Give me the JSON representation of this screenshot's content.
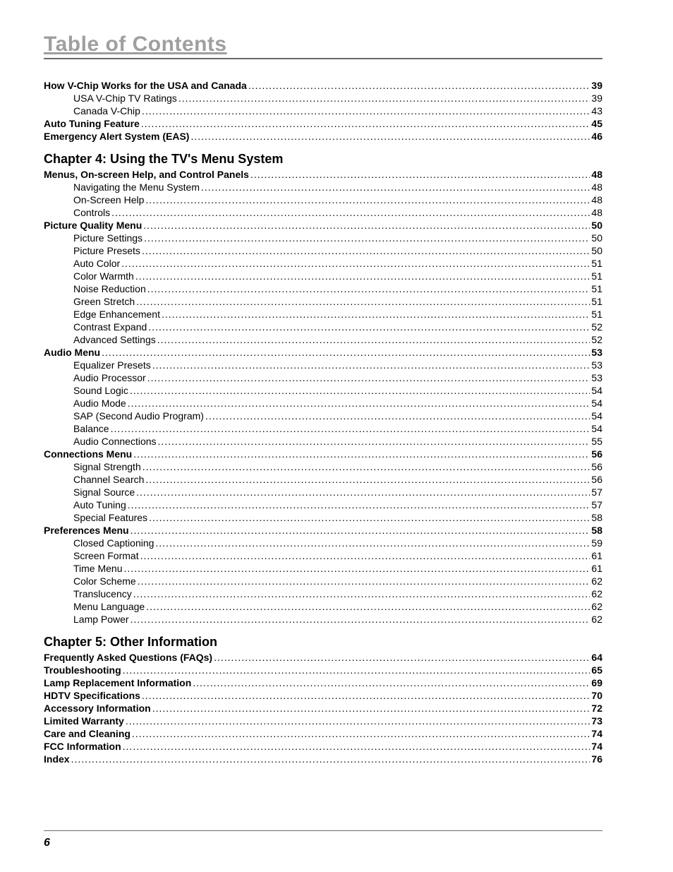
{
  "title": "Table of Contents",
  "page_number": "6",
  "colors": {
    "title_color": "#9f9f9f",
    "rule_color": "#6a6a6a",
    "text_color": "#000000",
    "background": "#ffffff"
  },
  "typography": {
    "title_fontsize_pt": 22,
    "chapter_fontsize_pt": 14,
    "body_fontsize_pt": 10.5,
    "page_number_fontsize_pt": 12
  },
  "toc_sections": [
    {
      "entries": [
        {
          "level": 0,
          "label": "How V-Chip Works for the USA and Canada",
          "page": "39"
        },
        {
          "level": 1,
          "label": "USA V-Chip TV Ratings",
          "page": "39"
        },
        {
          "level": 1,
          "label": "Canada V-Chip",
          "page": "43"
        },
        {
          "level": 0,
          "label": "Auto Tuning Feature",
          "page": "45"
        },
        {
          "level": 0,
          "label": "Emergency Alert System (EAS)",
          "page": "46"
        }
      ]
    },
    {
      "chapter_heading": "Chapter 4: Using the TV's Menu System",
      "entries": [
        {
          "level": 0,
          "label": "Menus, On-screen Help, and Control Panels",
          "page": "48"
        },
        {
          "level": 1,
          "label": "Navigating the Menu System",
          "page": "48"
        },
        {
          "level": 1,
          "label": "On-Screen Help",
          "page": "48"
        },
        {
          "level": 1,
          "label": "Controls",
          "page": "48"
        },
        {
          "level": 0,
          "label": "Picture Quality Menu",
          "page": "50"
        },
        {
          "level": 1,
          "label": "Picture Settings",
          "page": "50"
        },
        {
          "level": 1,
          "label": "Picture Presets",
          "page": "50"
        },
        {
          "level": 1,
          "label": "Auto Color",
          "page": "51"
        },
        {
          "level": 1,
          "label": "Color Warmth",
          "page": "51"
        },
        {
          "level": 1,
          "label": "Noise Reduction",
          "page": "51"
        },
        {
          "level": 1,
          "label": "Green Stretch",
          "page": "51"
        },
        {
          "level": 1,
          "label": "Edge Enhancement",
          "page": "51"
        },
        {
          "level": 1,
          "label": "Contrast Expand",
          "page": "52"
        },
        {
          "level": 1,
          "label": "Advanced Settings",
          "page": "52"
        },
        {
          "level": 0,
          "label": "Audio Menu",
          "page": "53"
        },
        {
          "level": 1,
          "label": "Equalizer Presets",
          "page": "53"
        },
        {
          "level": 1,
          "label": "Audio Processor",
          "page": "53"
        },
        {
          "level": 1,
          "label": "Sound Logic",
          "page": "54"
        },
        {
          "level": 1,
          "label": "Audio Mode",
          "page": "54"
        },
        {
          "level": 1,
          "label": "SAP (Second Audio Program)",
          "page": "54"
        },
        {
          "level": 1,
          "label": "Balance",
          "page": "54"
        },
        {
          "level": 1,
          "label": "Audio Connections",
          "page": "55"
        },
        {
          "level": 0,
          "label": "Connections Menu",
          "page": "56"
        },
        {
          "level": 1,
          "label": "Signal Strength",
          "page": "56"
        },
        {
          "level": 1,
          "label": "Channel Search",
          "page": "56"
        },
        {
          "level": 1,
          "label": "Signal Source",
          "page": "57"
        },
        {
          "level": 1,
          "label": "Auto Tuning",
          "page": "57"
        },
        {
          "level": 1,
          "label": "Special Features",
          "page": "58"
        },
        {
          "level": 0,
          "label": "Preferences Menu",
          "page": "58"
        },
        {
          "level": 1,
          "label": "Closed Captioning",
          "page": "59"
        },
        {
          "level": 1,
          "label": "Screen Format",
          "page": "61"
        },
        {
          "level": 1,
          "label": "Time Menu",
          "page": "61"
        },
        {
          "level": 1,
          "label": "Color Scheme",
          "page": "62"
        },
        {
          "level": 1,
          "label": "Translucency",
          "page": "62"
        },
        {
          "level": 1,
          "label": "Menu Language",
          "page": "62"
        },
        {
          "level": 1,
          "label": "Lamp Power",
          "page": "62"
        }
      ]
    },
    {
      "chapter_heading": "Chapter 5: Other Information",
      "entries": [
        {
          "level": 0,
          "label": "Frequently Asked Questions (FAQs)",
          "page": "64"
        },
        {
          "level": 0,
          "label": "Troubleshooting",
          "page": "65"
        },
        {
          "level": 0,
          "label": "Lamp Replacement Information",
          "page": "69"
        },
        {
          "level": 0,
          "label": "HDTV Specifications",
          "page": "70"
        },
        {
          "level": 0,
          "label": "Accessory Information",
          "page": "72"
        },
        {
          "level": 0,
          "label": "Limited Warranty",
          "page": "73"
        },
        {
          "level": 0,
          "label": "Care and Cleaning",
          "page": "74"
        },
        {
          "level": 0,
          "label": "FCC Information",
          "page": "74"
        },
        {
          "level": 0,
          "label": "Index",
          "page": "76"
        }
      ]
    }
  ]
}
